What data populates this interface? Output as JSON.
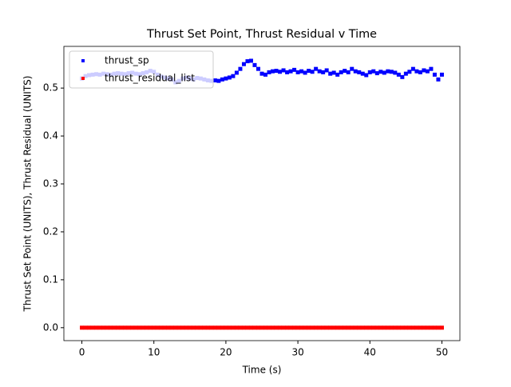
{
  "chart_data": {
    "type": "scatter",
    "title": "Thrust Set Point, Thrust Residual v Time",
    "xlabel": "Time (s)",
    "ylabel": "Thrust Set Point (UNITS), Thrust Residual (UNITS)",
    "x": [
      0,
      0.5,
      1,
      1.5,
      2,
      2.5,
      3,
      3.5,
      4,
      4.5,
      5,
      5.5,
      6,
      6.5,
      7,
      7.5,
      8,
      8.5,
      9,
      9.5,
      10,
      10.5,
      11,
      11.5,
      12,
      12.5,
      13,
      13.5,
      14,
      14.5,
      15,
      15.5,
      16,
      16.5,
      17,
      17.5,
      18,
      18.5,
      19,
      19.5,
      20,
      20.5,
      21,
      21.5,
      22,
      22.5,
      23,
      23.5,
      24,
      24.5,
      25,
      25.5,
      26,
      26.5,
      27,
      27.5,
      28,
      28.5,
      29,
      29.5,
      30,
      30.5,
      31,
      31.5,
      32,
      32.5,
      33,
      33.5,
      34,
      34.5,
      35,
      35.5,
      36,
      36.5,
      37,
      37.5,
      38,
      38.5,
      39,
      39.5,
      40,
      40.5,
      41,
      41.5,
      42,
      42.5,
      43,
      43.5,
      44,
      44.5,
      45,
      45.5,
      46,
      46.5,
      47,
      47.5,
      48,
      48.5,
      49,
      49.5,
      50
    ],
    "series": [
      {
        "name": "thrust_sp",
        "color": "#0000ff",
        "values": [
          0.52,
          0.525,
          0.527,
          0.528,
          0.529,
          0.528,
          0.53,
          0.529,
          0.528,
          0.53,
          0.531,
          0.53,
          0.529,
          0.531,
          0.532,
          0.53,
          0.529,
          0.531,
          0.533,
          0.536,
          0.534,
          0.528,
          0.524,
          0.522,
          0.52,
          0.518,
          0.512,
          0.515,
          0.52,
          0.522,
          0.52,
          0.518,
          0.521,
          0.52,
          0.518,
          0.516,
          0.515,
          0.516,
          0.515,
          0.518,
          0.52,
          0.522,
          0.525,
          0.532,
          0.54,
          0.55,
          0.556,
          0.557,
          0.548,
          0.54,
          0.53,
          0.528,
          0.533,
          0.535,
          0.536,
          0.534,
          0.537,
          0.533,
          0.535,
          0.538,
          0.533,
          0.535,
          0.532,
          0.536,
          0.534,
          0.54,
          0.535,
          0.533,
          0.537,
          0.53,
          0.532,
          0.528,
          0.533,
          0.536,
          0.533,
          0.54,
          0.535,
          0.533,
          0.53,
          0.527,
          0.533,
          0.535,
          0.531,
          0.534,
          0.532,
          0.535,
          0.534,
          0.532,
          0.528,
          0.523,
          0.53,
          0.534,
          0.54,
          0.535,
          0.533,
          0.537,
          0.535,
          0.54,
          0.528,
          0.518,
          0.528
        ]
      },
      {
        "name": "thrust_residual_list",
        "color": "#ff0000",
        "values": [
          0,
          0,
          0,
          0,
          0,
          0,
          0,
          0,
          0,
          0,
          0,
          0,
          0,
          0,
          0,
          0,
          0,
          0,
          0,
          0,
          0,
          0,
          0,
          0,
          0,
          0,
          0,
          0,
          0,
          0,
          0,
          0,
          0,
          0,
          0,
          0,
          0,
          0,
          0,
          0,
          0,
          0,
          0,
          0,
          0,
          0,
          0,
          0,
          0,
          0,
          0,
          0,
          0,
          0,
          0,
          0,
          0,
          0,
          0,
          0,
          0,
          0,
          0,
          0,
          0,
          0,
          0,
          0,
          0,
          0,
          0,
          0,
          0,
          0,
          0,
          0,
          0,
          0,
          0,
          0,
          0,
          0,
          0,
          0,
          0,
          0,
          0,
          0,
          0,
          0,
          0,
          0,
          0,
          0,
          0,
          0,
          0,
          0,
          0,
          0,
          0
        ]
      }
    ],
    "xlim": [
      -2.5,
      52.5
    ],
    "xticks": [
      0,
      10,
      20,
      30,
      40,
      50
    ],
    "ylim": [
      -0.027,
      0.587
    ],
    "yticks": [
      {
        "value": 0,
        "label": "0.0"
      },
      0.1,
      0.2,
      0.3,
      0.4,
      0.5
    ],
    "legend": "upper left"
  }
}
